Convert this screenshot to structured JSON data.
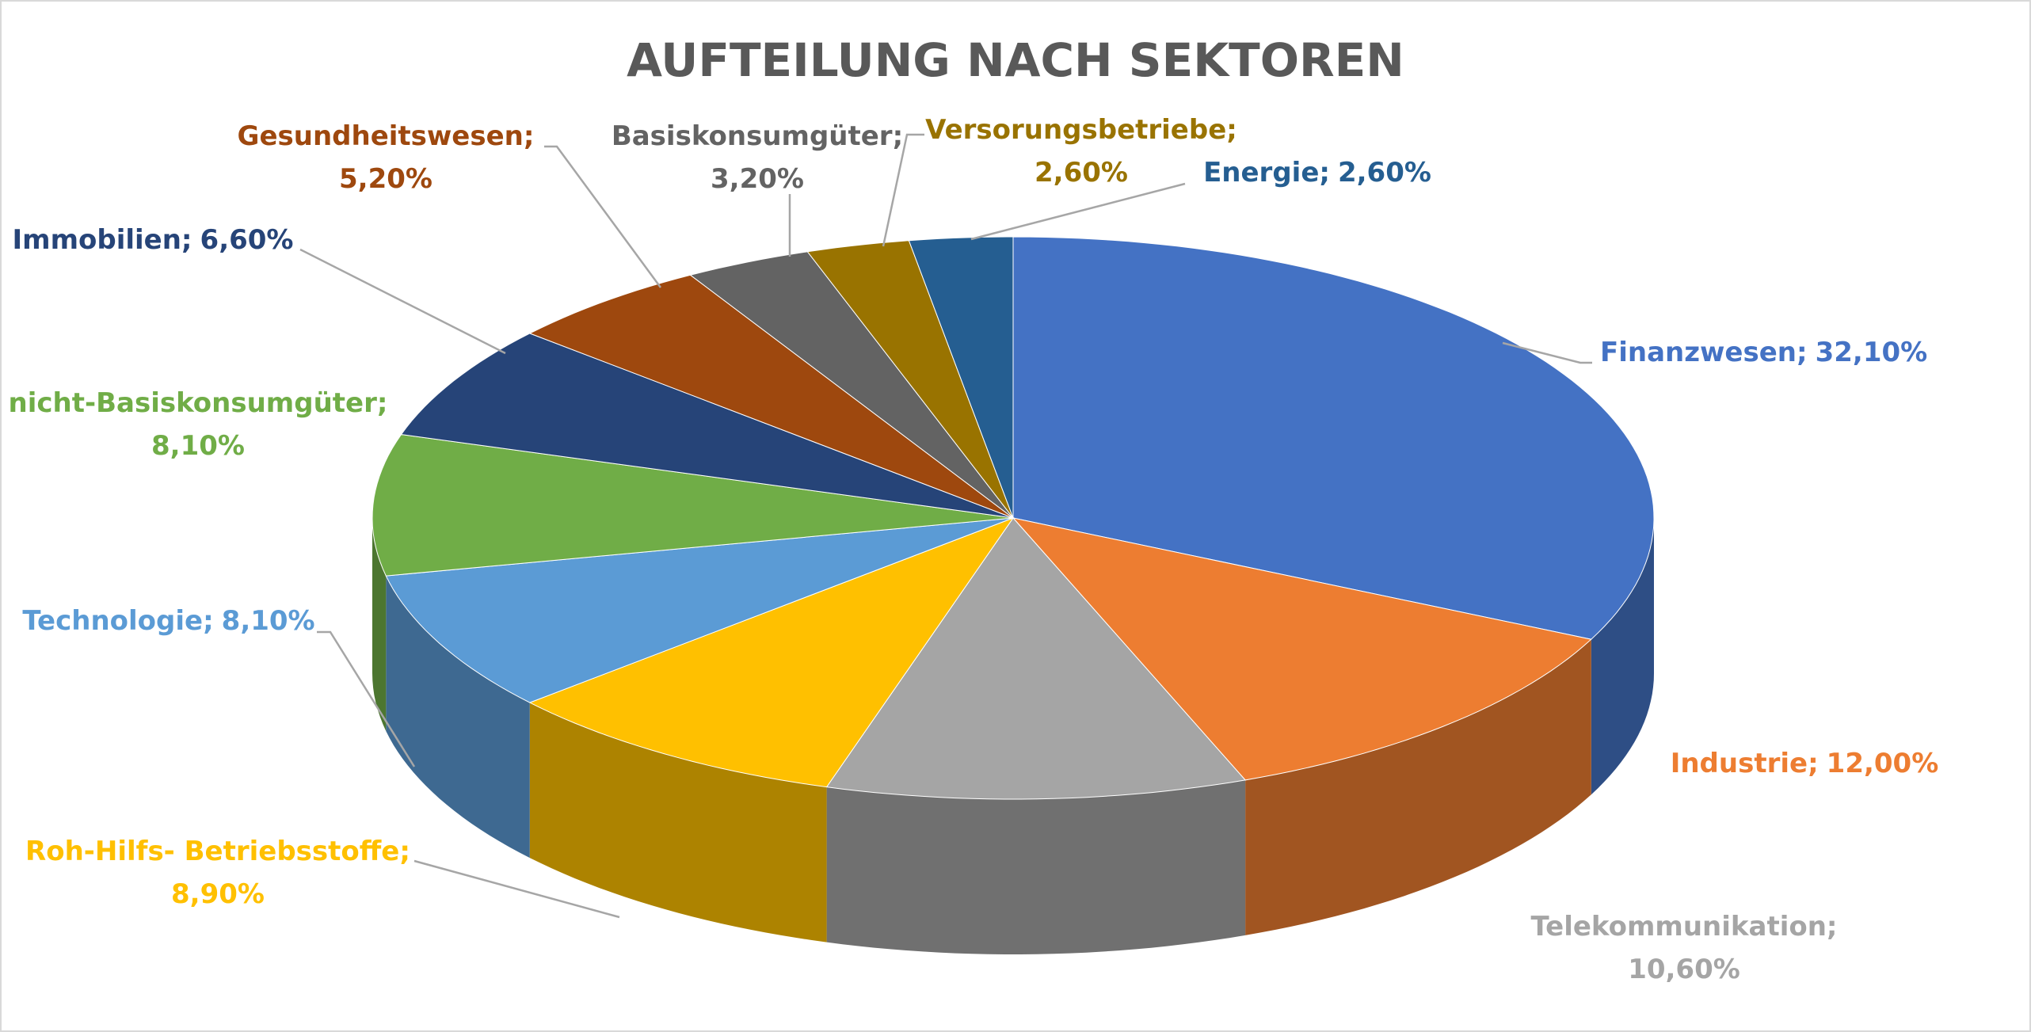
{
  "chart_data": {
    "type": "pie3d",
    "title": "AUFTEILUNG NACH SEKTOREN",
    "categories": [
      "Finanzwesen;",
      "Industrie;",
      "Telekommunikation;",
      "Roh-Hilfs- Betriebsstoffe;",
      "Technologie;",
      "nicht-Basiskonsumgüter;",
      "Immobilien;",
      "Gesundheitswesen;",
      "Basiskonsumgüter;",
      "Versorungsbetriebe;",
      "Energie;"
    ],
    "values": [
      32.1,
      12.0,
      10.6,
      8.9,
      8.1,
      8.1,
      6.6,
      5.2,
      3.2,
      2.6,
      2.6
    ],
    "value_labels": [
      "32,10%",
      "12,00%",
      "10,60%",
      "8,90%",
      "8,10%",
      "8,10%",
      "6,60%",
      "5,20%",
      "3,20%",
      "2,60%",
      "2,60%"
    ],
    "colors": [
      "#4472c4",
      "#ed7d31",
      "#a5a5a5",
      "#ffc000",
      "#5b9bd5",
      "#70ad47",
      "#264478",
      "#9e480e",
      "#636363",
      "#997300",
      "#255e91"
    ]
  }
}
